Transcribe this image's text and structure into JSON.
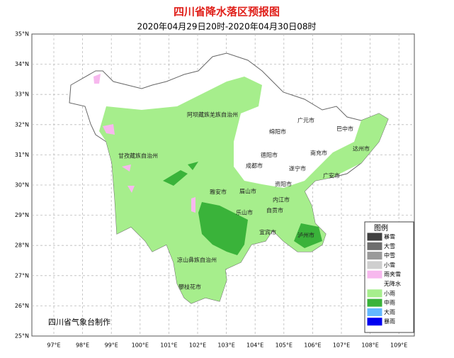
{
  "header": {
    "title": "四川省降水落区预报图",
    "subtitle": "2020年04月29日20时-2020年04月30日08时"
  },
  "axes": {
    "lat_labels": [
      "35°N",
      "34°N",
      "33°N",
      "32°N",
      "31°N",
      "30°N",
      "29°N",
      "28°N",
      "27°N",
      "26°N",
      "25°N"
    ],
    "lon_labels": [
      "97°E",
      "98°E",
      "99°E",
      "100°E",
      "101°E",
      "102°E",
      "103°E",
      "104°E",
      "105°E",
      "106°E",
      "107°E",
      "108°E",
      "109°E"
    ]
  },
  "regions": [
    "阿坝藏族羌族自治州",
    "甘孜藏族自治州",
    "广元市",
    "巴中市",
    "绵阳市",
    "达州市",
    "德阳市",
    "南充市",
    "成都市",
    "遂宁市",
    "广安市",
    "资阳市",
    "雅安市",
    "眉山市",
    "内江市",
    "乐山市",
    "自贡市",
    "宜宾市",
    "泸州市",
    "凉山彝族自治州",
    "攀枝花市"
  ],
  "legend": {
    "title": "图例",
    "items": [
      {
        "label": "暴雪",
        "color": "#404040"
      },
      {
        "label": "大雪",
        "color": "#6e6e6e"
      },
      {
        "label": "中雪",
        "color": "#9a9a9a"
      },
      {
        "label": "小雪",
        "color": "#cfcfcf"
      },
      {
        "label": "雨夹雪",
        "color": "#f7b8ee"
      },
      {
        "label": "无降水",
        "color": "#ffffff"
      },
      {
        "label": "小雨",
        "color": "#a6ee8c"
      },
      {
        "label": "中雨",
        "color": "#3ab33a"
      },
      {
        "label": "大雨",
        "color": "#63b8ff"
      },
      {
        "label": "暴雨",
        "color": "#0000f0"
      }
    ]
  },
  "credit": "四川省气象台制作"
}
